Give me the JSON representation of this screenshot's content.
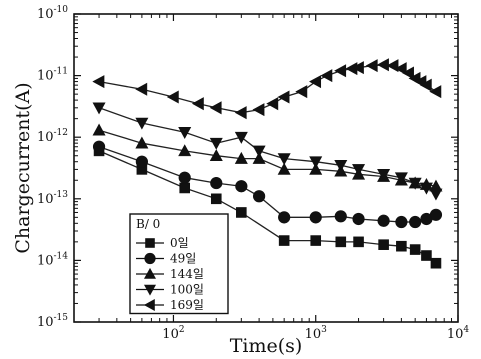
{
  "chart_data": {
    "type": "scatter",
    "xlabel": "Time(s)",
    "ylabel": "Chargecurrent(A)",
    "x_scale": "log",
    "y_scale": "log",
    "xlim": [
      20,
      10000
    ],
    "ylim": [
      1e-15,
      1e-10
    ],
    "x_ticks": [
      {
        "value": 100,
        "mantissa": "10",
        "exp": "2"
      },
      {
        "value": 1000,
        "mantissa": "10",
        "exp": "3"
      },
      {
        "value": 10000,
        "mantissa": "10",
        "exp": "4"
      }
    ],
    "y_ticks": [
      {
        "value": 1e-15,
        "mantissa": "10",
        "exp": "-15"
      },
      {
        "value": 1e-14,
        "mantissa": "10",
        "exp": "-14"
      },
      {
        "value": 1e-13,
        "mantissa": "10",
        "exp": "-13"
      },
      {
        "value": 1e-12,
        "mantissa": "10",
        "exp": "-12"
      },
      {
        "value": 1e-11,
        "mantissa": "10",
        "exp": "-11"
      },
      {
        "value": 1e-10,
        "mantissa": "10",
        "exp": "-10"
      }
    ],
    "grid": false,
    "legend_title": "B/ 0",
    "legend_position": "bottom-left",
    "series": [
      {
        "name": "0일",
        "marker": "square",
        "x": [
          30,
          60,
          120,
          200,
          300,
          600,
          1000,
          1500,
          2000,
          3000,
          4000,
          5000,
          6000,
          7000
        ],
        "y": [
          6e-13,
          3e-13,
          1.5e-13,
          1e-13,
          6e-14,
          2.1e-14,
          2.1e-14,
          2e-14,
          2e-14,
          1.8e-14,
          1.7e-14,
          1.5e-14,
          1.2e-14,
          9e-15
        ]
      },
      {
        "name": "49일",
        "marker": "circle",
        "x": [
          30,
          60,
          120,
          200,
          300,
          400,
          600,
          1000,
          1500,
          2000,
          3000,
          4000,
          5000,
          6000,
          7000
        ],
        "y": [
          7e-13,
          4e-13,
          2.2e-13,
          1.8e-13,
          1.6e-13,
          1.1e-13,
          5e-14,
          5e-14,
          5.2e-14,
          4.7e-14,
          4.4e-14,
          4.2e-14,
          4.2e-14,
          4.7e-14,
          5.5e-14
        ]
      },
      {
        "name": "144일",
        "marker": "triangle-up",
        "x": [
          30,
          60,
          120,
          200,
          300,
          400,
          600,
          1000,
          1500,
          2000,
          3000,
          4000,
          5000,
          6000,
          7000
        ],
        "y": [
          1.3e-12,
          8e-13,
          6e-13,
          5e-13,
          4.5e-13,
          4.5e-13,
          3e-13,
          3e-13,
          2.8e-13,
          2.5e-13,
          2.3e-13,
          2e-13,
          1.8e-13,
          1.7e-13,
          1.6e-13
        ]
      },
      {
        "name": "100일",
        "marker": "triangle-down",
        "x": [
          30,
          60,
          120,
          200,
          300,
          400,
          600,
          1000,
          1500,
          2000,
          3000,
          4000,
          5000,
          6000,
          7000
        ],
        "y": [
          3e-12,
          1.7e-12,
          1.2e-12,
          8e-13,
          1e-12,
          6e-13,
          4.5e-13,
          4e-13,
          3.5e-13,
          3e-13,
          2.5e-13,
          2.2e-13,
          1.8e-13,
          1.5e-13,
          1.2e-13
        ]
      },
      {
        "name": "169일",
        "marker": "triangle-left",
        "x": [
          30,
          60,
          100,
          150,
          200,
          300,
          400,
          500,
          600,
          800,
          1000,
          1200,
          1500,
          1800,
          2000,
          2500,
          3000,
          3500,
          4000,
          4500,
          5000,
          5500,
          6000,
          7000
        ],
        "y": [
          8e-12,
          6e-12,
          4.5e-12,
          3.5e-12,
          3e-12,
          2.5e-12,
          2.8e-12,
          3.5e-12,
          4.5e-12,
          5.5e-12,
          8e-12,
          1e-11,
          1.2e-11,
          1.3e-11,
          1.35e-11,
          1.45e-11,
          1.5e-11,
          1.45e-11,
          1.3e-11,
          1.1e-11,
          9e-12,
          8e-12,
          7e-12,
          5.5e-12
        ]
      }
    ]
  }
}
